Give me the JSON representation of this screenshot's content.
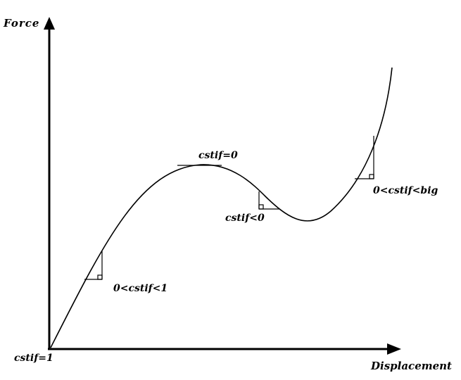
{
  "labels": {
    "y_axis": "Force",
    "x_axis": "Displacement",
    "origin": "cstif=1",
    "initial_slope": "0<cstif<1",
    "peak": "cstif=0",
    "softening": "cstif<0",
    "hardening": "0<cstif<big"
  },
  "colors": {
    "line": "#000000",
    "background": "#ffffff"
  }
}
